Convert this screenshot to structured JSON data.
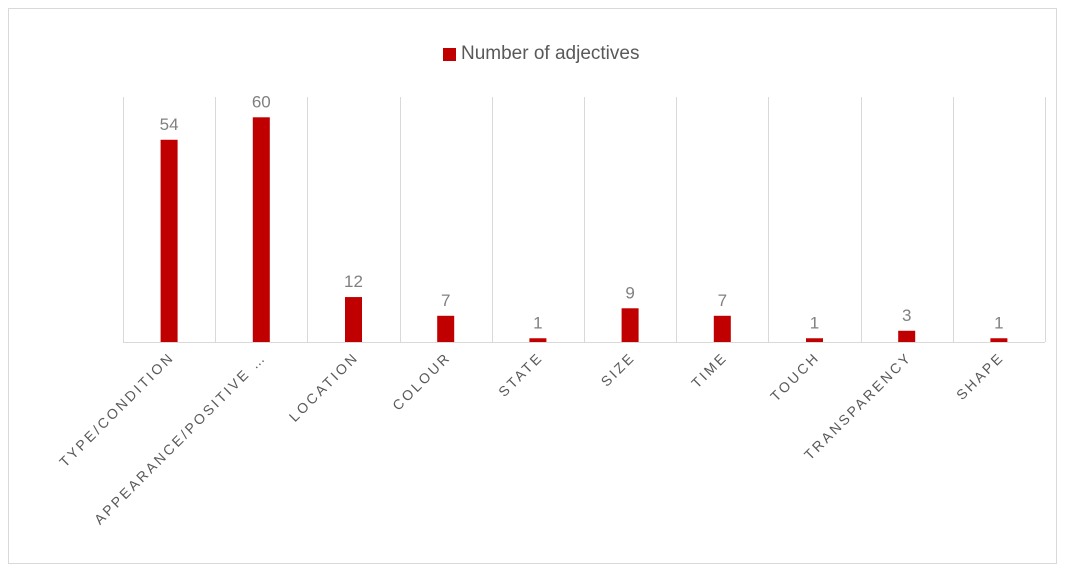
{
  "chart_data": {
    "type": "bar",
    "categories": [
      "TYPE/CONDITION",
      "APPEARANCE/POSITIVE …",
      "LOCATION",
      "COLOUR",
      "STATE",
      "SIZE",
      "TIME",
      "TOUCH",
      "TRANSPARENCY",
      "SHAPE"
    ],
    "series": [
      {
        "name": "Number of adjectives",
        "values": [
          54,
          60,
          12,
          7,
          1,
          9,
          7,
          1,
          3,
          1
        ],
        "color": "#c00000"
      }
    ],
    "ylim": [
      0,
      70
    ],
    "grid": "vertical category separators",
    "legend": "top-center",
    "data_labels": true
  }
}
